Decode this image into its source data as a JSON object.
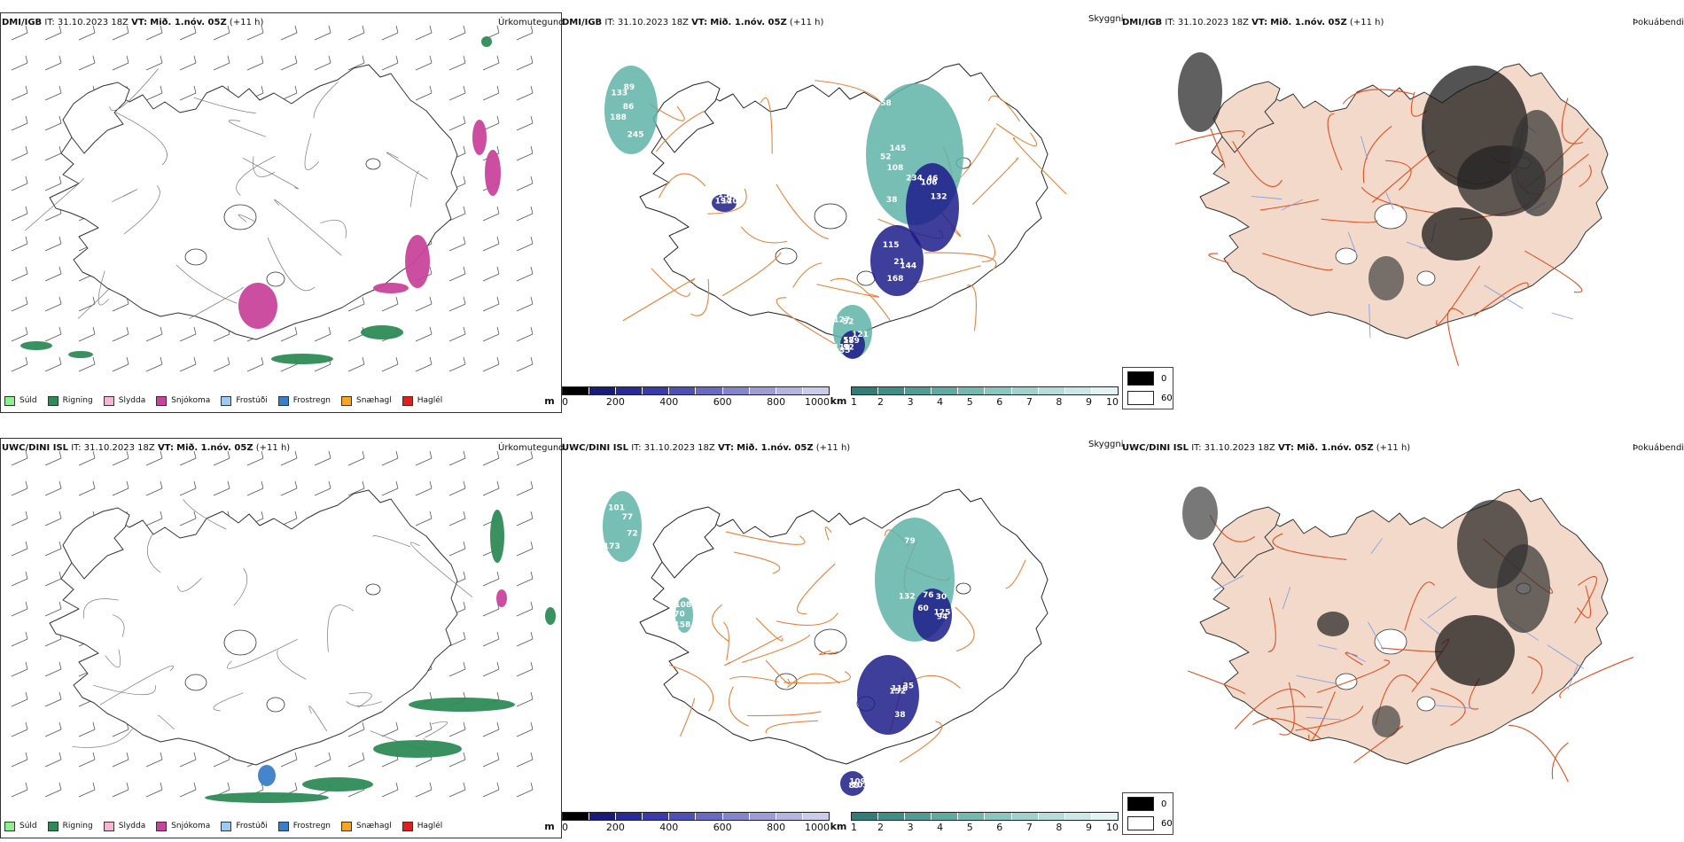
{
  "rows": [
    {
      "model": "DMI/IGB",
      "precip_title": "Úrkomutegund",
      "vis_title": "Skyggni",
      "fog_title": "Þokuábendi",
      "it_label": "IT:",
      "it_value": "31.10.2023 18Z",
      "vt_label": "VT:",
      "vt_value": "Mið. 1.nóv. 05Z",
      "lead": "(+11 h)",
      "vis_labels": [
        "188",
        "38",
        "46",
        "21",
        "52",
        "57",
        "152",
        "245",
        "145",
        "132",
        "115",
        "121",
        "35",
        "120",
        "133",
        "58",
        "106",
        "144",
        "110",
        "189",
        "84",
        "89",
        "108",
        "234",
        "168",
        "127",
        "92",
        "194",
        "86",
        "52"
      ]
    },
    {
      "model": "UWC/DINI ISL",
      "precip_title": "Úrkomutegund",
      "vis_title": "Skyggni",
      "fog_title": "Þokuábendi",
      "it_label": "IT:",
      "it_value": "31.10.2023 18Z",
      "vt_label": "VT:",
      "vt_value": "Mið. 1.nóv. 05Z",
      "lead": "(+11 h)",
      "vis_labels": [
        "77",
        "132",
        "35",
        "125",
        "109",
        "158",
        "173",
        "79",
        "152",
        "30",
        "89",
        "108",
        "101",
        "60",
        "115",
        "94",
        "103",
        "70",
        "72",
        "76",
        "38"
      ]
    }
  ],
  "precip_legend": [
    {
      "label": "Súld",
      "color": "#90ee90"
    },
    {
      "label": "Rigning",
      "color": "#2e8b57"
    },
    {
      "label": "Slydda",
      "color": "#f4b6d2"
    },
    {
      "label": "Snjókoma",
      "color": "#c8449c"
    },
    {
      "label": "Frostúði",
      "color": "#9ec9f0"
    },
    {
      "label": "Frostregn",
      "color": "#3a7fc6"
    },
    {
      "label": "Snæhagl",
      "color": "#f5a623"
    },
    {
      "label": "Haglél",
      "color": "#e02020"
    }
  ],
  "cloud_base_bar": {
    "unit": "m",
    "ticks": [
      "0",
      "200",
      "400",
      "600",
      "800",
      "1000"
    ],
    "colors": [
      "#000000",
      "#1a1a7a",
      "#2a2a94",
      "#3a3aa8",
      "#5050b4",
      "#6a6ac0",
      "#8484cc",
      "#9c9cd6",
      "#b4b4e0",
      "#ccccea"
    ]
  },
  "visibility_bar": {
    "unit": "km",
    "ticks": [
      "1",
      "2",
      "3",
      "4",
      "5",
      "6",
      "7",
      "8",
      "9",
      "10"
    ],
    "colors": [
      "#2f7f78",
      "#3e8e86",
      "#4e9c94",
      "#60aaa2",
      "#74b8b0",
      "#8ac5be",
      "#a0d1cb",
      "#b6ddd8",
      "#cce8e4",
      "#e2f3f1"
    ]
  },
  "fog_legend": [
    {
      "value": "0",
      "color": "#000000"
    },
    {
      "value": "60",
      "color": "#ffffff"
    }
  ],
  "colors": {
    "precip_rain": "#2e8b57",
    "precip_snow": "#c8449c",
    "precip_frz": "#3a7fc6",
    "vis_teal": "#5fb3a8",
    "vis_navy": "#1c1c8a",
    "roads": "#e8823a",
    "land_fog": "#f2d9c9"
  }
}
